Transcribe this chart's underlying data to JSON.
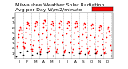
{
  "title": "Milwaukee Weather Solar Radiation",
  "subtitle": "Avg per Day W/m2/minute",
  "bg_color": "#ffffff",
  "plot_bg": "#ffffff",
  "grid_color": "#bbbbbb",
  "legend_box_color": "#ff0000",
  "ylim": [
    0,
    9
  ],
  "yticks": [
    1,
    2,
    3,
    4,
    5,
    6,
    7,
    8
  ],
  "red_x": [
    2,
    3,
    4,
    5,
    6,
    7,
    8,
    9,
    10,
    11,
    12,
    13,
    14,
    15,
    16,
    17,
    18,
    19,
    20,
    21,
    22,
    23,
    24,
    25,
    26,
    27,
    28,
    29,
    30,
    31,
    32,
    33,
    34,
    35,
    36,
    37,
    38,
    39,
    40,
    41,
    42,
    43,
    44,
    45,
    46,
    47,
    48,
    49,
    50,
    51,
    52,
    53,
    54,
    55,
    56,
    57,
    58,
    59,
    60,
    61,
    62,
    63,
    64,
    65,
    66,
    67,
    68,
    69,
    70,
    71,
    72,
    73,
    74,
    75,
    76,
    77,
    78,
    79,
    80,
    81,
    82,
    83,
    84,
    85,
    86,
    87,
    88,
    89,
    90,
    91,
    92,
    93,
    94,
    95,
    96,
    97,
    98,
    99,
    100,
    101,
    102,
    103,
    104,
    105,
    106,
    107,
    108,
    109,
    110,
    111,
    112,
    113,
    114,
    115,
    116,
    117,
    118,
    119,
    120,
    121,
    122,
    123,
    124,
    125,
    126,
    127,
    128,
    129,
    130,
    131,
    132,
    133,
    134,
    135,
    136,
    137,
    138,
    139,
    140,
    141,
    142,
    143,
    144,
    145,
    146,
    147,
    148,
    149,
    150,
    151,
    152,
    153,
    154,
    155,
    156,
    157,
    158,
    159,
    160,
    161,
    162,
    163,
    164,
    165,
    166,
    167,
    168,
    169,
    170,
    171,
    172,
    173,
    174,
    175,
    176,
    177,
    178,
    179,
    180
  ],
  "red_y": [
    2.1,
    2.5,
    3.2,
    4.1,
    4.8,
    5.5,
    5.9,
    6.2,
    5.8,
    5.5,
    4.9,
    4.1,
    3.3,
    2.5,
    2.0,
    2.3,
    3.1,
    4.0,
    5.2,
    6.0,
    6.8,
    7.1,
    6.9,
    6.5,
    5.8,
    4.8,
    3.7,
    2.8,
    1.9,
    1.5,
    1.8,
    2.6,
    3.5,
    4.5,
    5.5,
    6.3,
    6.9,
    7.3,
    7.1,
    6.7,
    5.9,
    4.8,
    3.5,
    2.3,
    1.5,
    1.2,
    1.8,
    2.7,
    3.8,
    5.0,
    6.1,
    7.0,
    7.5,
    7.6,
    7.2,
    6.5,
    5.5,
    4.2,
    3.0,
    2.0,
    1.4,
    1.6,
    2.5,
    3.6,
    4.8,
    5.9,
    6.8,
    7.2,
    7.0,
    6.5,
    5.6,
    4.5,
    3.2,
    2.2,
    1.5,
    1.3,
    1.9,
    2.8,
    3.9,
    5.1,
    6.2,
    7.0,
    7.4,
    7.2,
    6.6,
    5.7,
    4.6,
    3.3,
    2.2,
    1.5,
    1.2,
    1.7,
    2.6,
    3.7,
    4.9,
    6.0,
    6.9,
    7.3,
    7.1,
    6.5,
    5.6,
    4.4,
    3.2,
    2.1,
    1.4,
    1.2,
    1.8,
    2.8,
    3.9,
    5.1,
    6.1,
    6.9,
    7.2,
    6.9,
    6.3,
    5.4,
    4.3,
    3.1,
    2.0,
    1.4,
    1.1,
    1.6,
    2.5,
    3.6,
    4.8,
    5.9,
    6.7,
    7.0,
    6.8,
    6.2,
    5.3,
    4.2,
    3.0,
    2.0,
    1.3,
    1.1,
    1.6,
    2.5,
    3.5,
    4.7,
    5.8,
    6.5,
    6.8,
    6.6,
    6.0,
    5.1,
    4.1,
    2.9,
    1.9,
    1.2,
    1.0,
    1.5,
    2.4,
    3.4,
    4.5,
    5.5,
    6.2,
    6.5,
    6.3,
    5.8,
    4.9,
    3.9,
    2.8,
    1.8,
    1.2,
    1.0,
    1.4,
    2.2,
    3.2,
    4.2,
    5.1,
    5.8,
    6.1,
    5.9,
    5.4,
    4.6,
    3.7,
    2.6,
    1.7,
    1.1,
    0.9
  ],
  "black_x": [
    1,
    8,
    15,
    22,
    32,
    40,
    47,
    60,
    70,
    80,
    90,
    100,
    110,
    120,
    130,
    140,
    150,
    160,
    170,
    180
  ],
  "black_y": [
    0.5,
    1.2,
    0.8,
    1.5,
    0.7,
    1.1,
    0.9,
    1.3,
    0.6,
    1.0,
    0.8,
    1.2,
    0.7,
    1.0,
    0.9,
    0.8,
    1.1,
    0.7,
    1.0,
    0.6
  ],
  "vgrid_positions": [
    15,
    30,
    45,
    60,
    75,
    90,
    105,
    120,
    135,
    150,
    165,
    180
  ],
  "xlim": [
    0,
    183
  ],
  "xtick_labels": [
    "J",
    "F",
    "M",
    "A",
    "M",
    "J",
    "J",
    "A",
    "S",
    "O",
    "N",
    "D"
  ],
  "xtick_positions": [
    7.5,
    22.5,
    37.5,
    52.5,
    67.5,
    82.5,
    97.5,
    112.5,
    127.5,
    142.5,
    157.5,
    172.5
  ],
  "dot_size": 1.5,
  "black_dot_size": 1.5,
  "title_fontsize": 4.5,
  "tick_fontsize": 3.0
}
